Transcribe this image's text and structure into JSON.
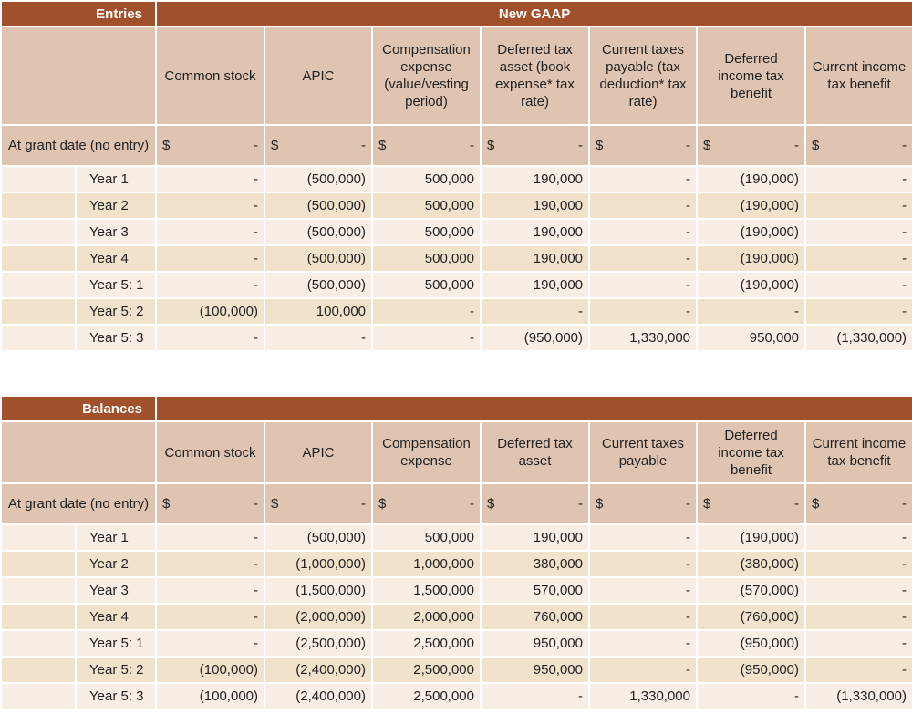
{
  "entries": {
    "title": "Entries",
    "group": "New GAAP",
    "columns": [
      "Common stock",
      "APIC",
      "Compensation expense (value/vesting period)",
      "Deferred tax asset (book expense* tax rate)",
      "Current taxes payable (tax deduction* tax rate)",
      "Deferred income tax benefit",
      "Current income tax benefit"
    ],
    "grant": {
      "label": "At grant date (no entry)",
      "currency": "$",
      "value": "-"
    },
    "rows": [
      {
        "label": "Year 1",
        "values": [
          "-",
          "(500,000)",
          "500,000",
          "190,000",
          "-",
          "(190,000)",
          "-"
        ]
      },
      {
        "label": "Year 2",
        "values": [
          "-",
          "(500,000)",
          "500,000",
          "190,000",
          "-",
          "(190,000)",
          "-"
        ]
      },
      {
        "label": "Year 3",
        "values": [
          "-",
          "(500,000)",
          "500,000",
          "190,000",
          "-",
          "(190,000)",
          "-"
        ]
      },
      {
        "label": "Year 4",
        "values": [
          "-",
          "(500,000)",
          "500,000",
          "190,000",
          "-",
          "(190,000)",
          "-"
        ]
      },
      {
        "label": "Year 5: 1",
        "values": [
          "-",
          "(500,000)",
          "500,000",
          "190,000",
          "-",
          "(190,000)",
          "-"
        ]
      },
      {
        "label": "Year 5: 2",
        "values": [
          "(100,000)",
          "100,000",
          "-",
          "-",
          "-",
          "-",
          "-"
        ]
      },
      {
        "label": "Year 5: 3",
        "values": [
          "-",
          "-",
          "-",
          "(950,000)",
          "1,330,000",
          "950,000",
          "(1,330,000)"
        ]
      }
    ]
  },
  "balances": {
    "title": "Balances",
    "group": "",
    "columns": [
      "Common stock",
      "APIC",
      "Compensation expense",
      "Deferred tax asset",
      "Current taxes payable",
      "Deferred income tax benefit",
      "Current income tax benefit"
    ],
    "grant": {
      "label": "At grant date (no entry)",
      "currency": "$",
      "value": "-"
    },
    "rows": [
      {
        "label": "Year 1",
        "values": [
          "-",
          "(500,000)",
          "500,000",
          "190,000",
          "-",
          "(190,000)",
          "-"
        ]
      },
      {
        "label": "Year 2",
        "values": [
          "-",
          "(1,000,000)",
          "1,000,000",
          "380,000",
          "-",
          "(380,000)",
          "-"
        ]
      },
      {
        "label": "Year 3",
        "values": [
          "-",
          "(1,500,000)",
          "1,500,000",
          "570,000",
          "-",
          "(570,000)",
          "-"
        ]
      },
      {
        "label": "Year 4",
        "values": [
          "-",
          "(2,000,000)",
          "2,000,000",
          "760,000",
          "-",
          "(760,000)",
          "-"
        ]
      },
      {
        "label": "Year 5: 1",
        "values": [
          "-",
          "(2,500,000)",
          "2,500,000",
          "950,000",
          "-",
          "(950,000)",
          "-"
        ]
      },
      {
        "label": "Year 5: 2",
        "values": [
          "(100,000)",
          "(2,400,000)",
          "2,500,000",
          "950,000",
          "-",
          "(950,000)",
          "-"
        ]
      },
      {
        "label": "Year 5: 3",
        "values": [
          "(100,000)",
          "(2,400,000)",
          "2,500,000",
          "-",
          "1,330,000",
          "-",
          "(1,330,000)"
        ]
      }
    ]
  }
}
